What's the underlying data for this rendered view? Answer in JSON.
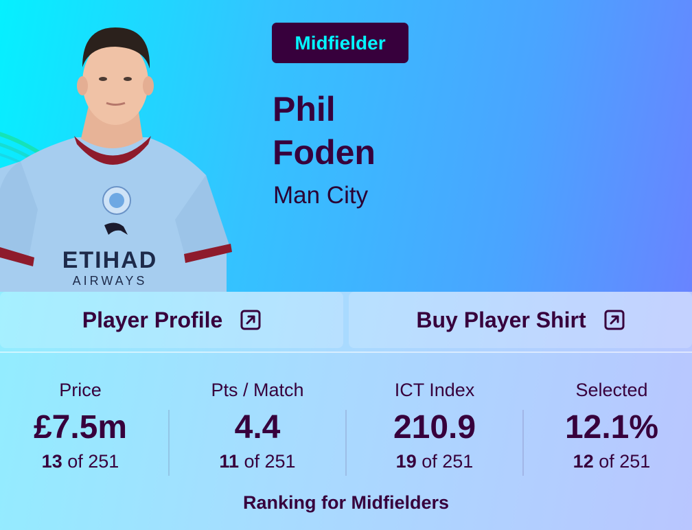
{
  "player": {
    "position": "Midfielder",
    "first_name": "Phil",
    "last_name": "Foden",
    "team": "Man City"
  },
  "links": {
    "profile_label": "Player Profile",
    "shirt_label": "Buy Player Shirt",
    "icon": "external-link-icon"
  },
  "stats": [
    {
      "label": "Price",
      "value": "£7.5m",
      "rank": "13",
      "of": "of 251"
    },
    {
      "label": "Pts / Match",
      "value": "4.4",
      "rank": "11",
      "of": "of 251"
    },
    {
      "label": "ICT Index",
      "value": "210.9",
      "rank": "19",
      "of": "of 251"
    },
    {
      "label": "Selected",
      "value": "12.1%",
      "rank": "12",
      "of": "of 251"
    }
  ],
  "ranking_note": "Ranking for Midfielders",
  "colors": {
    "brand_purple": "#37003c",
    "brand_cyan": "#04f5ff",
    "shirt_blue": "#a6cdef",
    "shirt_trim": "#8e1b2c"
  }
}
